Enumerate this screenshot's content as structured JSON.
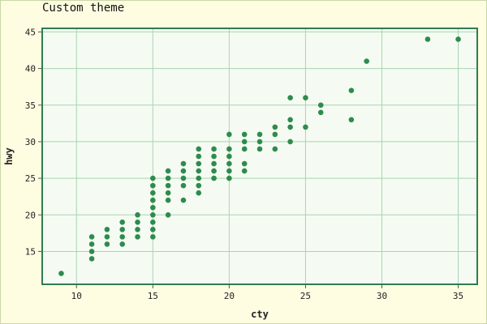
{
  "chart_data": {
    "type": "scatter",
    "title": "Custom theme",
    "xlabel": "cty",
    "ylabel": "hwy",
    "xlim": [
      7.7,
      36.3
    ],
    "ylim": [
      10.4,
      45.6
    ],
    "xticks": [
      10,
      15,
      20,
      25,
      30,
      35
    ],
    "yticks": [
      15,
      20,
      25,
      30,
      35,
      40,
      45
    ],
    "grid": true,
    "colors": {
      "page_bg": "#fffde1",
      "panel_bg": "#f5fbf2",
      "panel_border": "#2e7d4f",
      "grid": "#a8d5b2",
      "point": "#2e8b4e"
    },
    "series": [
      {
        "points": [
          [
            9,
            12
          ],
          [
            11,
            14
          ],
          [
            11,
            15
          ],
          [
            11,
            16
          ],
          [
            11,
            17
          ],
          [
            12,
            16
          ],
          [
            12,
            17
          ],
          [
            12,
            18
          ],
          [
            13,
            16
          ],
          [
            13,
            17
          ],
          [
            13,
            18
          ],
          [
            13,
            19
          ],
          [
            14,
            17
          ],
          [
            14,
            18
          ],
          [
            14,
            19
          ],
          [
            14,
            20
          ],
          [
            15,
            17
          ],
          [
            15,
            18
          ],
          [
            15,
            19
          ],
          [
            15,
            20
          ],
          [
            15,
            21
          ],
          [
            15,
            22
          ],
          [
            15,
            23
          ],
          [
            15,
            24
          ],
          [
            15,
            25
          ],
          [
            16,
            20
          ],
          [
            16,
            22
          ],
          [
            16,
            23
          ],
          [
            16,
            24
          ],
          [
            16,
            25
          ],
          [
            16,
            26
          ],
          [
            17,
            22
          ],
          [
            17,
            24
          ],
          [
            17,
            25
          ],
          [
            17,
            26
          ],
          [
            17,
            27
          ],
          [
            18,
            23
          ],
          [
            18,
            24
          ],
          [
            18,
            25
          ],
          [
            18,
            26
          ],
          [
            18,
            27
          ],
          [
            18,
            28
          ],
          [
            18,
            29
          ],
          [
            19,
            25
          ],
          [
            19,
            26
          ],
          [
            19,
            27
          ],
          [
            19,
            28
          ],
          [
            19,
            29
          ],
          [
            20,
            25
          ],
          [
            20,
            26
          ],
          [
            20,
            27
          ],
          [
            20,
            28
          ],
          [
            20,
            29
          ],
          [
            20,
            31
          ],
          [
            21,
            26
          ],
          [
            21,
            27
          ],
          [
            21,
            29
          ],
          [
            21,
            30
          ],
          [
            21,
            31
          ],
          [
            22,
            29
          ],
          [
            22,
            30
          ],
          [
            22,
            31
          ],
          [
            23,
            29
          ],
          [
            23,
            31
          ],
          [
            23,
            32
          ],
          [
            24,
            30
          ],
          [
            24,
            32
          ],
          [
            24,
            33
          ],
          [
            24,
            36
          ],
          [
            25,
            32
          ],
          [
            25,
            36
          ],
          [
            26,
            34
          ],
          [
            26,
            35
          ],
          [
            28,
            33
          ],
          [
            28,
            37
          ],
          [
            29,
            41
          ],
          [
            33,
            44
          ],
          [
            35,
            44
          ]
        ]
      }
    ]
  }
}
